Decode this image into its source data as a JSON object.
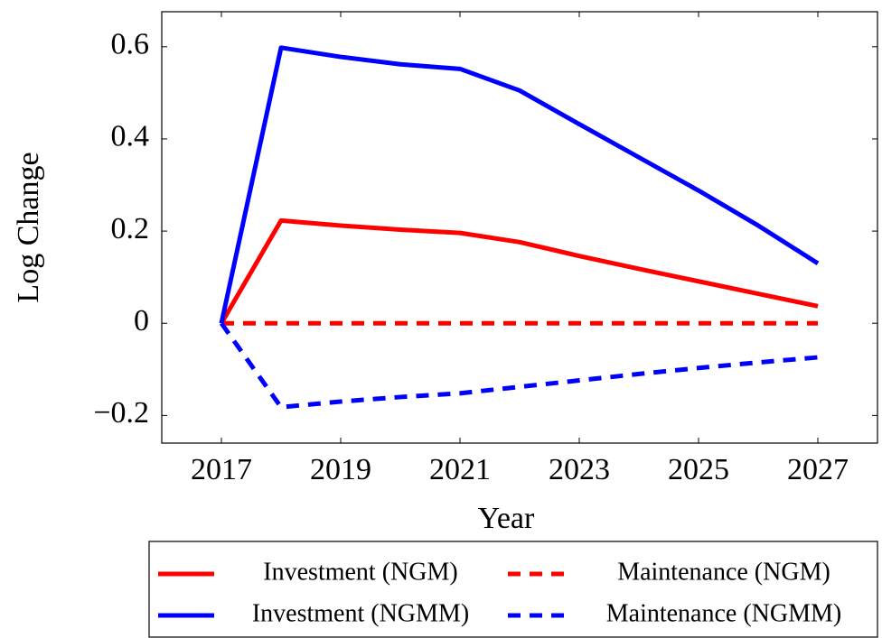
{
  "chart_data": {
    "type": "line",
    "x_label": "Year",
    "y_label": "Log Change",
    "x": [
      2017,
      2018,
      2019,
      2020,
      2021,
      2022,
      2023,
      2024,
      2025,
      2026,
      2027
    ],
    "series": [
      {
        "name": "Investment (NGM)",
        "color": "#ff0000",
        "style": "solid",
        "values": [
          0,
          0.223,
          0.212,
          0.203,
          0.196,
          0.176,
          0.146,
          0.118,
          0.091,
          0.064,
          0.037
        ]
      },
      {
        "name": "Maintenance (NGM)",
        "color": "#ff0000",
        "style": "dashed",
        "values": [
          0,
          0,
          0,
          0,
          0,
          0,
          0,
          0,
          0,
          0,
          0
        ]
      },
      {
        "name": "Investment (NGMM)",
        "color": "#0000ff",
        "style": "solid",
        "values": [
          0,
          0.598,
          0.578,
          0.562,
          0.552,
          0.505,
          0.432,
          0.36,
          0.288,
          0.212,
          0.13
        ]
      },
      {
        "name": "Maintenance (NGMM)",
        "color": "#0000ff",
        "style": "dashed",
        "values": [
          0,
          -0.182,
          -0.17,
          -0.16,
          -0.152,
          -0.138,
          -0.124,
          -0.11,
          -0.097,
          -0.085,
          -0.074
        ]
      }
    ],
    "xlim": [
      2016,
      2028
    ],
    "xticks": [
      2017,
      2019,
      2021,
      2023,
      2025,
      2027
    ],
    "ylim": [
      -0.26,
      0.676
    ],
    "yticks": [
      {
        "value": -0.2,
        "label": "−0.2"
      },
      0,
      0.2,
      0.4,
      0.6
    ],
    "grid": false,
    "legend_position": "bottom"
  }
}
